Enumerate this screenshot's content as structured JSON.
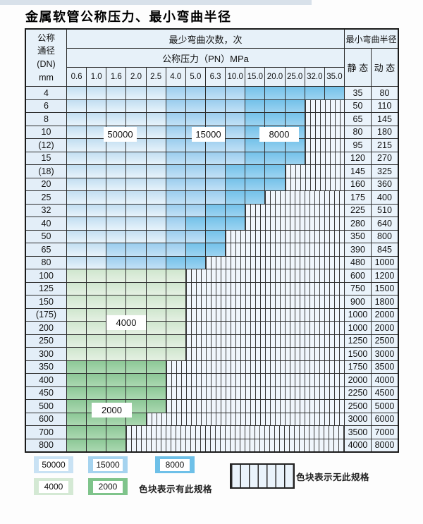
{
  "title": "金属软管公称压力、最小弯曲半径",
  "table": {
    "header": {
      "dn_lines": [
        "公称",
        "通径",
        "(DN)",
        "mm"
      ],
      "cycles_title": "最少弯曲次数，次",
      "pressure_title": "公称压力（PN）MPa",
      "radius_title": "最小弯曲半径",
      "static_label": "静 态",
      "dynamic_label": "动 态",
      "pressures": [
        "0.6",
        "1.0",
        "1.6",
        "2.0",
        "2.5",
        "4.0",
        "5.0",
        "6.3",
        "10.0",
        "15.0",
        "20.0",
        "25.0",
        "32.0",
        "35.0"
      ]
    },
    "zone_labels": [
      {
        "text": "50000"
      },
      {
        "text": "15000"
      },
      {
        "text": "8000"
      },
      {
        "text": "4000"
      },
      {
        "text": "2000"
      }
    ],
    "rows": [
      {
        "dn": "4",
        "static": "35",
        "dynamic": "80",
        "palette": "blue",
        "colored_until": "35.0",
        "zone_medium_from": "4.0",
        "zone_dark_from": "15.0"
      },
      {
        "dn": "6",
        "static": "50",
        "dynamic": "110",
        "palette": "blue",
        "colored_until": "25.0",
        "zone_medium_from": "4.0",
        "zone_dark_from": "15.0"
      },
      {
        "dn": "8",
        "static": "65",
        "dynamic": "145",
        "palette": "blue",
        "colored_until": "25.0",
        "zone_medium_from": "4.0",
        "zone_dark_from": "15.0"
      },
      {
        "dn": "10",
        "static": "80",
        "dynamic": "180",
        "palette": "blue",
        "colored_until": "25.0",
        "zone_medium_from": "4.0",
        "zone_dark_from": "15.0"
      },
      {
        "dn": "(12)",
        "static": "95",
        "dynamic": "215",
        "palette": "blue",
        "colored_until": "25.0",
        "zone_medium_from": "4.0",
        "zone_dark_from": "15.0"
      },
      {
        "dn": "15",
        "static": "120",
        "dynamic": "270",
        "palette": "blue",
        "colored_until": "25.0",
        "zone_medium_from": "4.0",
        "zone_dark_from": "15.0"
      },
      {
        "dn": "(18)",
        "static": "145",
        "dynamic": "325",
        "palette": "blue",
        "colored_until": "20.0",
        "zone_medium_from": "4.0",
        "zone_dark_from": "10.0"
      },
      {
        "dn": "20",
        "static": "160",
        "dynamic": "360",
        "palette": "blue",
        "colored_until": "20.0",
        "zone_medium_from": "4.0",
        "zone_dark_from": "10.0"
      },
      {
        "dn": "25",
        "static": "175",
        "dynamic": "400",
        "palette": "blue",
        "colored_until": "15.0",
        "zone_medium_from": "4.0",
        "zone_dark_from": "10.0"
      },
      {
        "dn": "32",
        "static": "225",
        "dynamic": "510",
        "palette": "blue",
        "colored_until": "10.0",
        "zone_medium_from": "4.0",
        "zone_dark_from": "6.3"
      },
      {
        "dn": "40",
        "static": "280",
        "dynamic": "640",
        "palette": "blue",
        "colored_until": "10.0",
        "zone_medium_from": "4.0",
        "zone_dark_from": "5.0"
      },
      {
        "dn": "50",
        "static": "350",
        "dynamic": "800",
        "palette": "blue",
        "colored_until": "6.3",
        "zone_medium_from": "4.0",
        "zone_dark_from": "6.3"
      },
      {
        "dn": "65",
        "static": "390",
        "dynamic": "845",
        "palette": "blue",
        "colored_until": "6.3",
        "zone_medium_from": "1.6",
        "zone_dark_from": "5.0"
      },
      {
        "dn": "80",
        "static": "480",
        "dynamic": "1000",
        "palette": "blue",
        "colored_until": "5.0",
        "zone_medium_from": "1.6",
        "zone_dark_from": "4.0"
      },
      {
        "dn": "100",
        "static": "600",
        "dynamic": "1200",
        "palette": "green-light",
        "colored_until": "4.0"
      },
      {
        "dn": "125",
        "static": "750",
        "dynamic": "1500",
        "palette": "green-light",
        "colored_until": "4.0"
      },
      {
        "dn": "150",
        "static": "900",
        "dynamic": "1800",
        "palette": "green-light",
        "colored_until": "4.0"
      },
      {
        "dn": "(175)",
        "static": "1000",
        "dynamic": "2000",
        "palette": "green-light",
        "colored_until": "4.0"
      },
      {
        "dn": "200",
        "static": "1000",
        "dynamic": "2000",
        "palette": "green-light",
        "colored_until": "4.0"
      },
      {
        "dn": "250",
        "static": "1250",
        "dynamic": "2500",
        "palette": "green-light",
        "colored_until": "4.0"
      },
      {
        "dn": "300",
        "static": "1500",
        "dynamic": "3000",
        "palette": "green-light",
        "colored_until": "4.0"
      },
      {
        "dn": "350",
        "static": "1750",
        "dynamic": "3500",
        "palette": "green-dark",
        "colored_until": "2.5"
      },
      {
        "dn": "400",
        "static": "2000",
        "dynamic": "4000",
        "palette": "green-dark",
        "colored_until": "2.5"
      },
      {
        "dn": "450",
        "static": "2250",
        "dynamic": "4500",
        "palette": "green-dark",
        "colored_until": "2.5"
      },
      {
        "dn": "500",
        "static": "2500",
        "dynamic": "5000",
        "palette": "green-dark",
        "colored_until": "2.5"
      },
      {
        "dn": "600",
        "static": "3000",
        "dynamic": "6000",
        "palette": "green-dark",
        "colored_until": "2.0"
      },
      {
        "dn": "700",
        "static": "3500",
        "dynamic": "7000",
        "palette": "green-dark",
        "colored_until": "1.6"
      },
      {
        "dn": "800",
        "static": "4000",
        "dynamic": "8000",
        "palette": "green-dark",
        "colored_until": "1.6"
      }
    ]
  },
  "legend": {
    "items": [
      {
        "label": "50000",
        "color": "#c9e2f4"
      },
      {
        "label": "15000",
        "color": "#a5d3ef"
      },
      {
        "label": "8000",
        "color": "#6ec0e8"
      },
      {
        "label": "4000",
        "color": "#d4e9d4"
      },
      {
        "label": "2000",
        "color": "#7fc48b"
      }
    ],
    "has_spec_note": "色块表示有此规格",
    "no_spec_note": "色块表示无此规格"
  }
}
